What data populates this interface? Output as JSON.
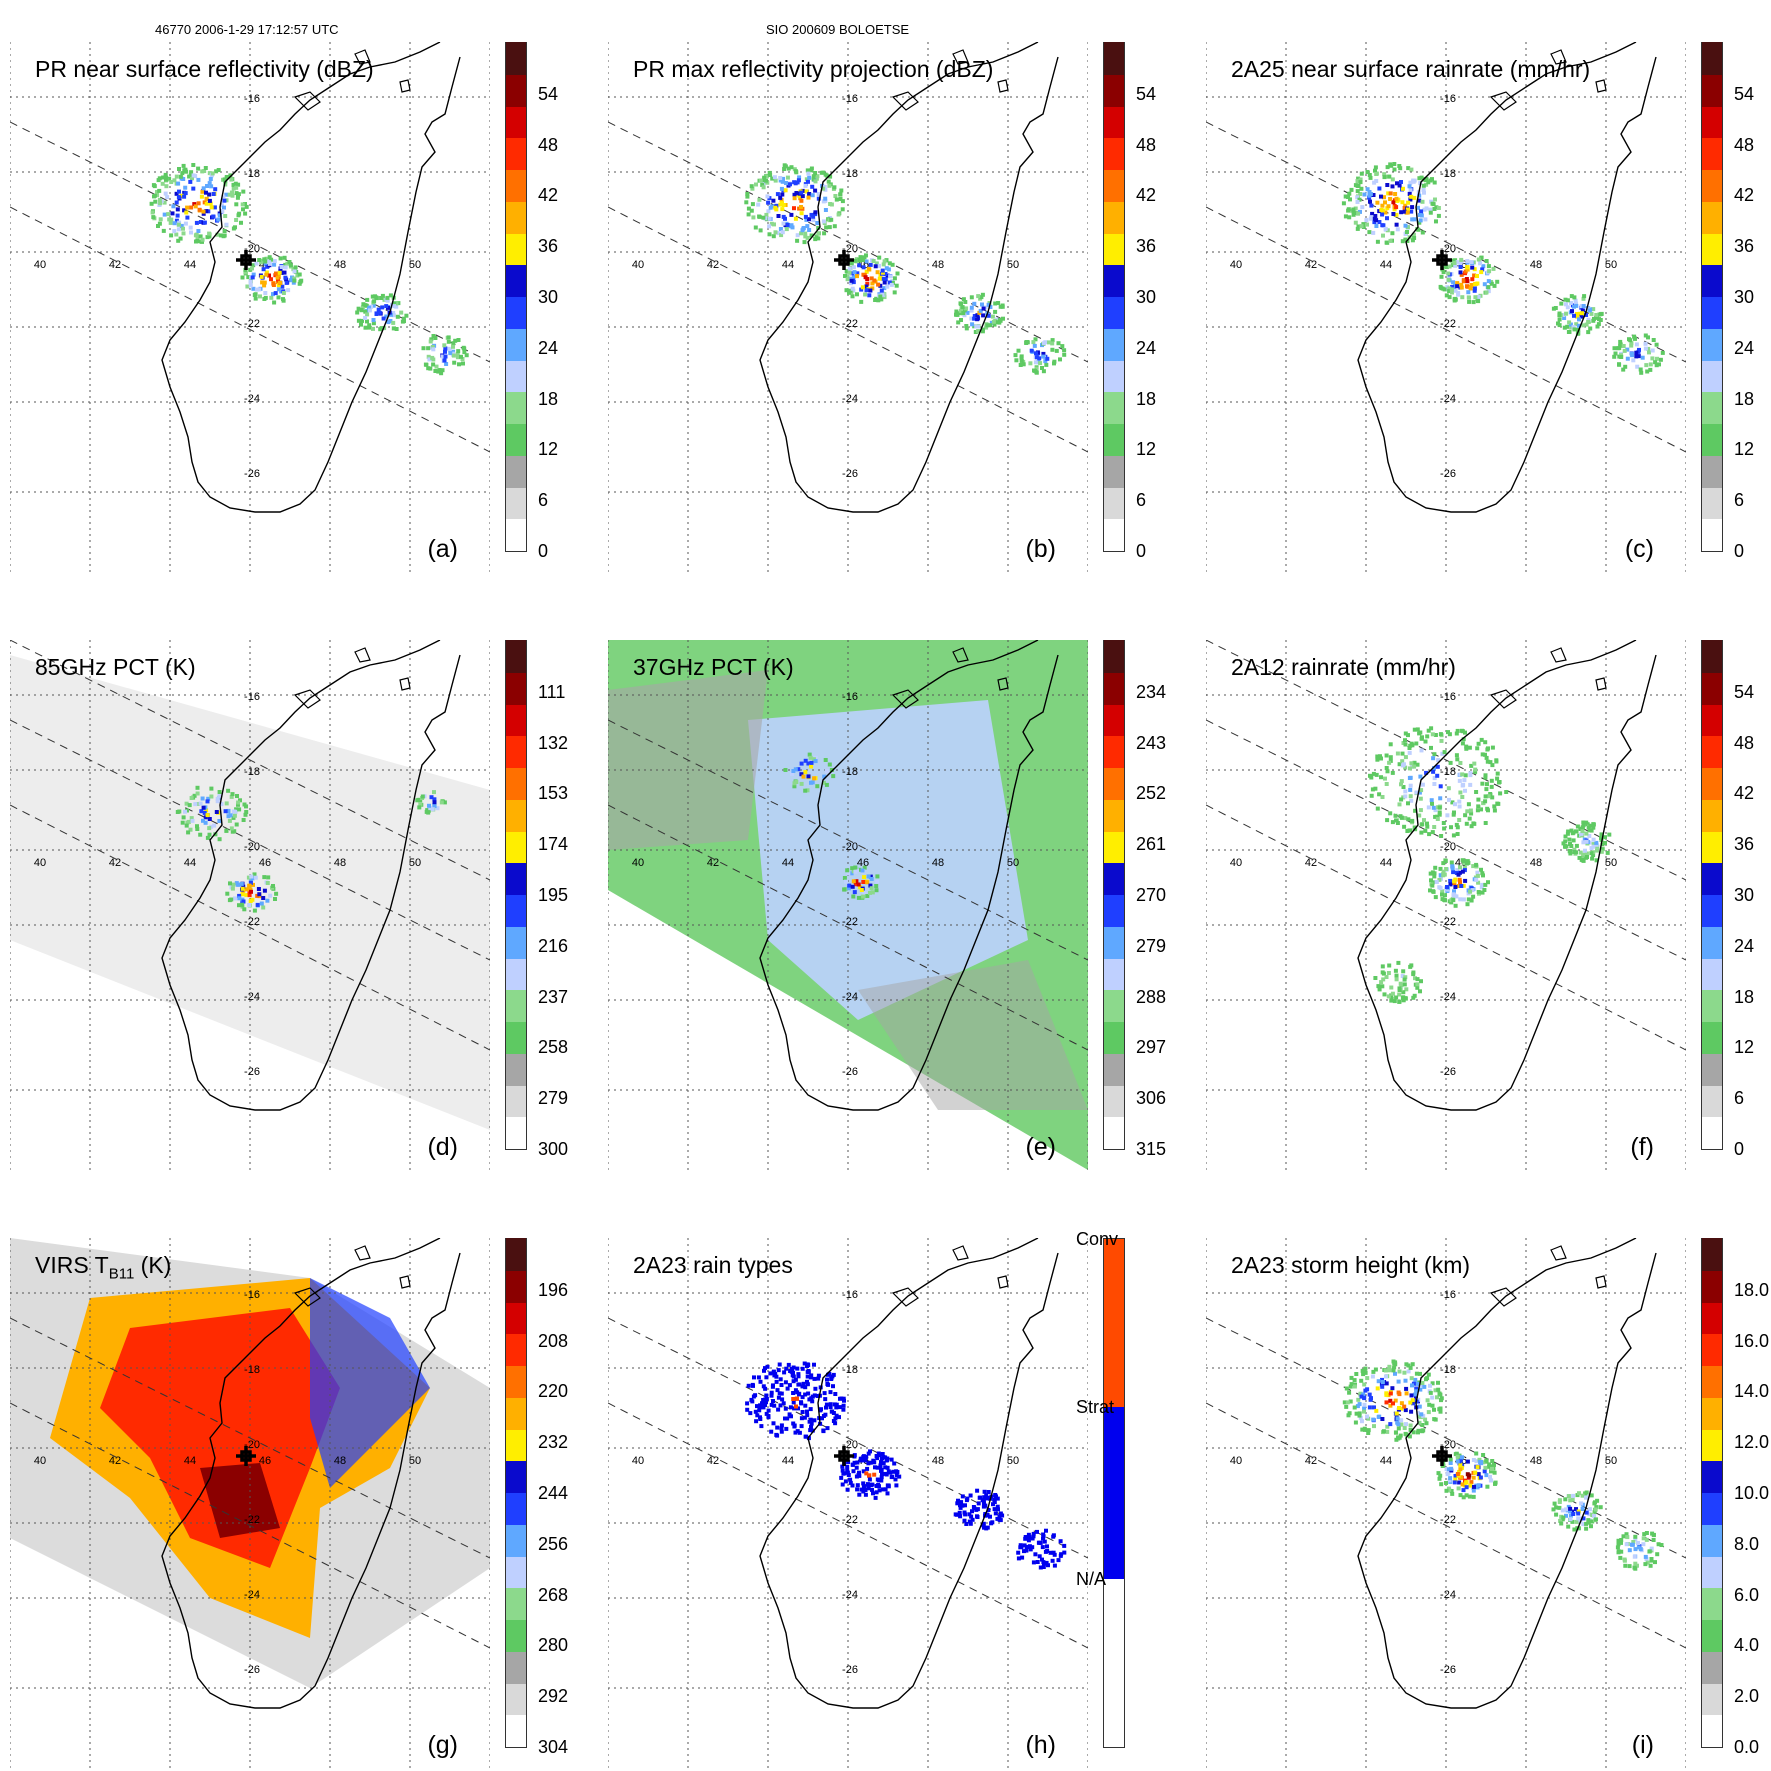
{
  "header": {
    "left": "46770 2006-1-29 17:12:57 UTC",
    "center": "SIO 200609 BOLOETSE"
  },
  "grid": {
    "lon_labels": [
      "40",
      "42",
      "44",
      "46",
      "48",
      "50"
    ],
    "lat_labels": [
      "-16",
      "-18",
      "-20",
      "-22",
      "-24",
      "-26"
    ]
  },
  "panels": [
    {
      "id": "a",
      "title": "PR near surface reflectivity (dBZ)",
      "label": "(a)",
      "style": "pr",
      "colorbar": {
        "labels": [
          "0",
          "6",
          "12",
          "18",
          "24",
          "30",
          "36",
          "42",
          "48",
          "54"
        ]
      }
    },
    {
      "id": "b",
      "title": "PR max reflectivity projection (dBZ)",
      "label": "(b)",
      "style": "prmax",
      "colorbar": {
        "labels": [
          "0",
          "6",
          "12",
          "18",
          "24",
          "30",
          "36",
          "42",
          "48",
          "54"
        ]
      }
    },
    {
      "id": "c",
      "title": "2A25 near surface rainrate (mm/hr)",
      "label": "(c)",
      "style": "rain",
      "colorbar": {
        "labels": [
          "0",
          "6",
          "12",
          "18",
          "24",
          "30",
          "36",
          "42",
          "48",
          "54"
        ]
      }
    },
    {
      "id": "d",
      "title": "85GHz PCT (K)",
      "label": "(d)",
      "style": "pct85",
      "colorbar": {
        "labels": [
          "300",
          "279",
          "258",
          "237",
          "216",
          "195",
          "174",
          "153",
          "132",
          "111"
        ]
      }
    },
    {
      "id": "e",
      "title": "37GHz PCT (K)",
      "label": "(e)",
      "style": "pct37",
      "colorbar": {
        "labels": [
          "315",
          "306",
          "297",
          "288",
          "279",
          "270",
          "261",
          "252",
          "243",
          "234"
        ]
      }
    },
    {
      "id": "f",
      "title": "2A12 rainrate (mm/hr)",
      "label": "(f)",
      "style": "rain2a12",
      "colorbar": {
        "labels": [
          "0",
          "6",
          "12",
          "18",
          "24",
          "30",
          "36",
          "42",
          "48",
          "54"
        ]
      }
    },
    {
      "id": "g",
      "title": "VIRS T",
      "title_sub": "B11",
      "title_suffix": " (K)",
      "label": "(g)",
      "style": "virs",
      "colorbar": {
        "labels": [
          "304",
          "292",
          "280",
          "268",
          "256",
          "244",
          "232",
          "220",
          "208",
          "196"
        ]
      }
    },
    {
      "id": "h",
      "title": "2A23 rain types",
      "label": "(h)",
      "style": "types",
      "colorbar": {
        "labels": [
          "N/A",
          "Strat",
          "Conv"
        ]
      }
    },
    {
      "id": "i",
      "title": "2A23 storm height (km)",
      "label": "(i)",
      "style": "height",
      "colorbar": {
        "labels": [
          "0.0",
          "2.0",
          "4.0",
          "6.0",
          "8.0",
          "10.0",
          "12.0",
          "14.0",
          "16.0",
          "18.0"
        ]
      }
    }
  ],
  "colors": {
    "scale": [
      "#ffffff",
      "#d9d9d9",
      "#a6a6a6",
      "#5ec962",
      "#8cd98c",
      "#bfd0ff",
      "#5fa8ff",
      "#1f3fff",
      "#0a0acd",
      "#ffee00",
      "#ffb000",
      "#ff7000",
      "#ff2a00",
      "#d40000",
      "#8b0000",
      "#4a1010"
    ],
    "conv": "#ff4a00",
    "strat": "#0000ee",
    "na": "#ffffff"
  }
}
